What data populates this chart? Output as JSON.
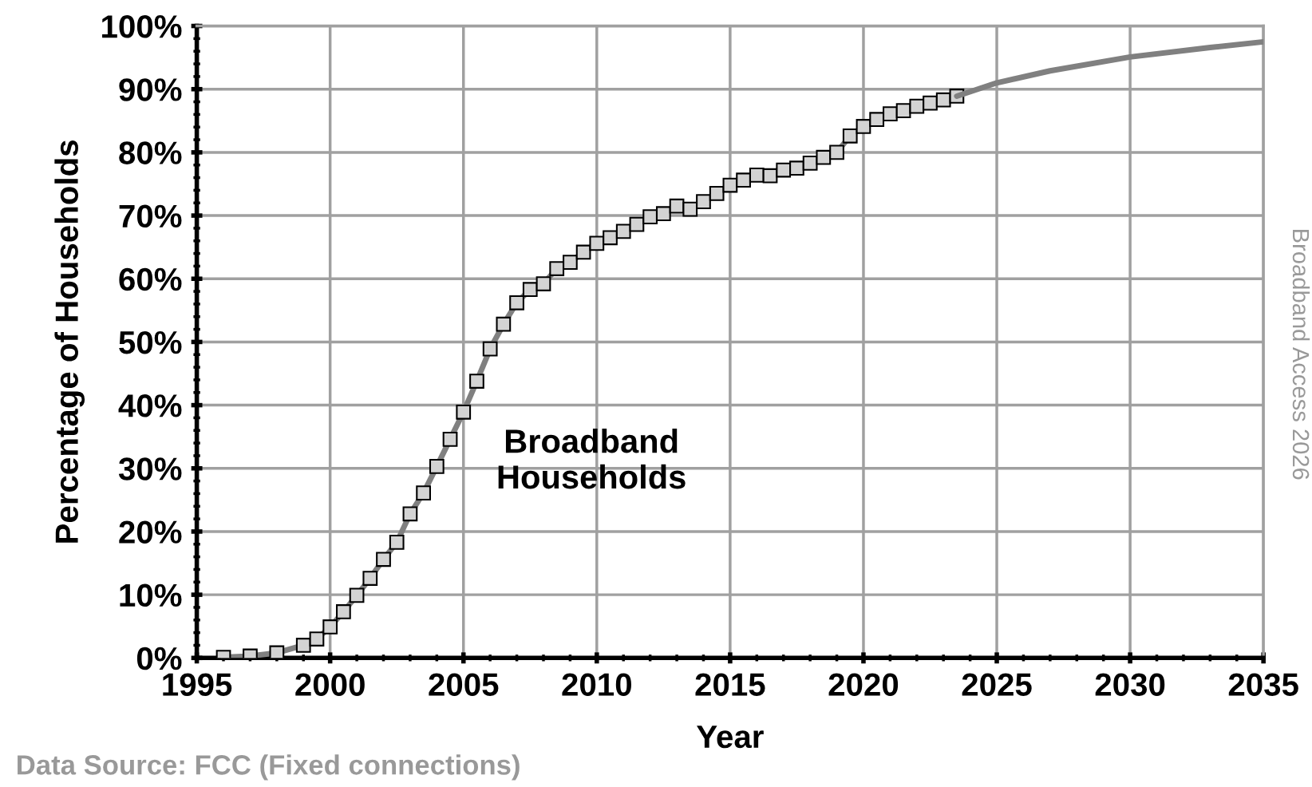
{
  "chart_data": {
    "type": "line",
    "xlabel": "Year",
    "ylabel": "Percentage of Households",
    "annotations": [
      "Broadband\nHouseholds",
      "Data Source: FCC (Fixed connections)",
      "Broadband Access 2026"
    ],
    "series": [
      {
        "color": "#808080",
        "marker": "square",
        "x": [
          1996,
          1997,
          1998,
          1999,
          1999.5,
          2000,
          2000.5,
          2001,
          2001.5,
          2002,
          2002.5,
          2003,
          2003.5,
          2004,
          2004.5,
          2005,
          2005.5,
          2006,
          2006.5,
          2007,
          2007.5,
          2008,
          2008.5,
          2009,
          2009.5,
          2010,
          2010.5,
          2011,
          2011.5,
          2012,
          2012.5,
          2013,
          2013.5,
          2014,
          2014.5,
          2015,
          2015.5,
          2016,
          2016.5,
          2017,
          2017.5,
          2018,
          2018.5,
          2019,
          2019.5,
          2020,
          2020.5,
          2021,
          2021.5,
          2022,
          2022.5,
          2023,
          2023.5
        ],
        "values": [
          0.1,
          0.3,
          0.8,
          2,
          3,
          4.9,
          7.3,
          9.9,
          12.6,
          15.6,
          18.3,
          22.8,
          26.1,
          30.3,
          34.6,
          38.9,
          43.8,
          48.9,
          52.8,
          56.2,
          58.3,
          59.2,
          61.6,
          62.6,
          64.2,
          65.6,
          66.5,
          67.5,
          68.6,
          69.8,
          70.3,
          71.5,
          71,
          72.2,
          73.5,
          74.8,
          75.6,
          76.4,
          76.3,
          77.2,
          77.5,
          78.3,
          79.2,
          80,
          82.6,
          84.1,
          85.2,
          86.1,
          86.6,
          87.3,
          87.8,
          88.3,
          88.9
        ]
      },
      {
        "color": "#808080",
        "marker": "none",
        "x": [
          2023.5,
          2025,
          2027,
          2030,
          2033,
          2035
        ],
        "values": [
          88.9,
          91,
          92.9,
          95.1,
          96.6,
          97.5
        ]
      }
    ],
    "xlim": [
      1995,
      2035
    ],
    "xticks": [
      1995,
      2000,
      2005,
      2010,
      2015,
      2020,
      2025,
      2030,
      2035
    ],
    "ylim": [
      0,
      100
    ],
    "yticks": [
      {
        "value": 0,
        "label": "0%"
      },
      {
        "value": 10,
        "label": "10%"
      },
      {
        "value": 20,
        "label": "20%"
      },
      {
        "value": 30,
        "label": "30%"
      },
      {
        "value": 40,
        "label": "40%"
      },
      {
        "value": 50,
        "label": "50%"
      },
      {
        "value": 60,
        "label": "60%"
      },
      {
        "value": 70,
        "label": "70%"
      },
      {
        "value": 80,
        "label": "80%"
      },
      {
        "value": 90,
        "label": "90%"
      },
      {
        "value": 100,
        "label": "100%"
      }
    ],
    "grid": true,
    "legend": false
  }
}
